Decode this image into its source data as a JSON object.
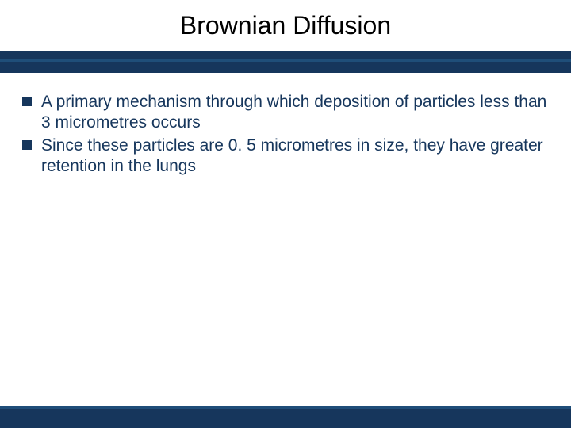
{
  "slide": {
    "title": "Brownian Diffusion",
    "title_fontsize": 32,
    "title_color": "#000000",
    "bullets": [
      {
        "text": "A primary mechanism through which deposition of particles less than 3 micrometres occurs"
      },
      {
        "text": "Since these particles are 0. 5 micrometres in size, they have greater retention in the lungs"
      }
    ],
    "bullet_fontsize": 21,
    "bullet_text_color": "#16365c",
    "bullet_marker_color": "#16365c",
    "band_color": "#16365c",
    "accent_color": "#1f4e79",
    "background_color": "#ffffff"
  }
}
